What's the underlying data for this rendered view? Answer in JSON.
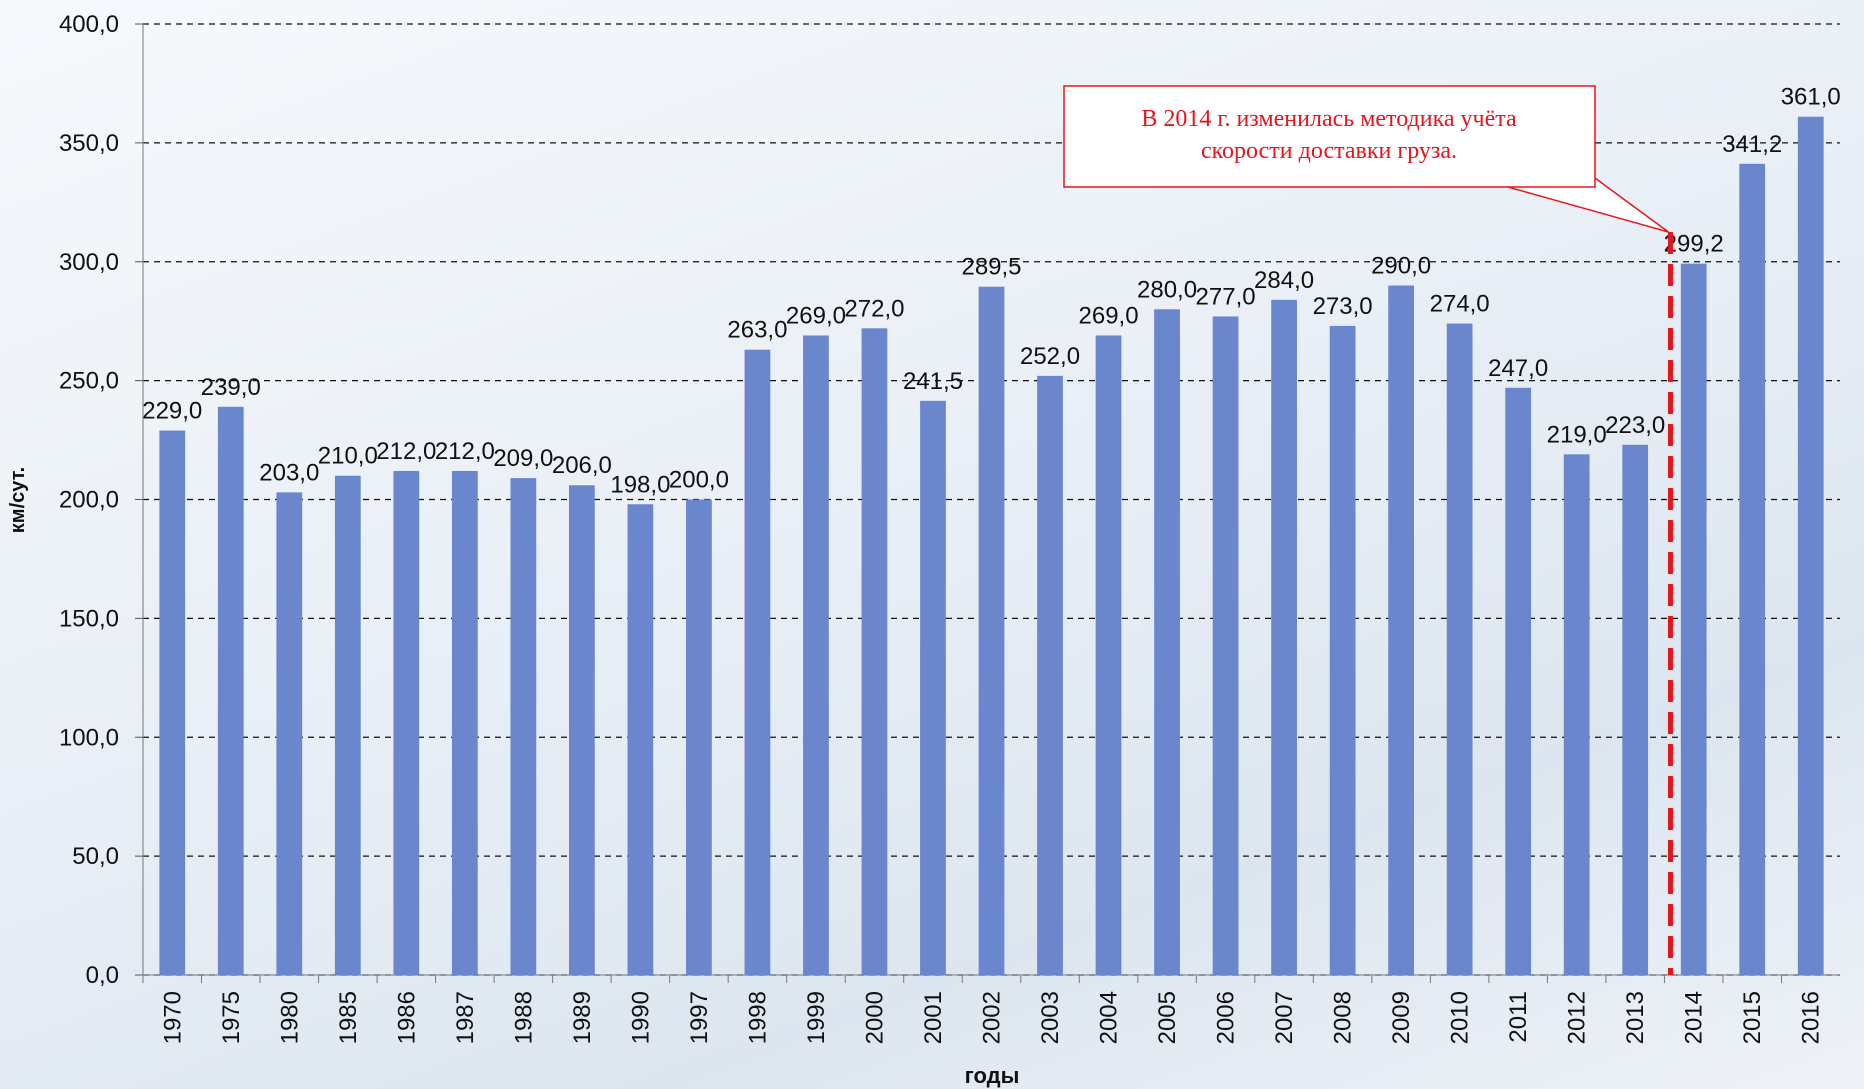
{
  "chart_data": {
    "type": "bar",
    "ylabel": "км/сут.",
    "xlabel": "годы",
    "annotation": [
      "В 2014 г. изменилась методика учёта",
      "скорости доставки груза."
    ],
    "categories": [
      "1970",
      "1975",
      "1980",
      "1985",
      "1986",
      "1987",
      "1988",
      "1989",
      "1990",
      "1997",
      "1998",
      "1999",
      "2000",
      "2001",
      "2002",
      "2003",
      "2004",
      "2005",
      "2006",
      "2007",
      "2008",
      "2009",
      "2010",
      "2011",
      "2012",
      "2013",
      "2014",
      "2015",
      "2016"
    ],
    "values": [
      229,
      239,
      203,
      210,
      212,
      212,
      209,
      206,
      198,
      200,
      263,
      269,
      272,
      241.5,
      289.5,
      252,
      269,
      280,
      277,
      284,
      273,
      290,
      274,
      247,
      219,
      223,
      299.2,
      341.2,
      361
    ],
    "value_labels": [
      "229,0",
      "239,0",
      "203,0",
      "210,0",
      "212,0",
      "212,0",
      "209,0",
      "206,0",
      "198,0",
      "200,0",
      "263,0",
      "269,0",
      "272,0",
      "241,5",
      "289,5",
      "252,0",
      "269,0",
      "280,0",
      "277,0",
      "284,0",
      "273,0",
      "290,0",
      "274,0",
      "247,0",
      "219,0",
      "223,0",
      "299,2",
      "341,2",
      "361,0"
    ],
    "color": "#6a86cc",
    "ylim": [
      0,
      400
    ],
    "yticks": [
      {
        "value": 0,
        "label": "0,0"
      },
      {
        "value": 50,
        "label": "50,0"
      },
      {
        "value": 100,
        "label": "100,0"
      },
      {
        "value": 150,
        "label": "150,0"
      },
      {
        "value": 200,
        "label": "200,0"
      },
      {
        "value": 250,
        "label": "250,0"
      },
      {
        "value": 300,
        "label": "300,0"
      },
      {
        "value": 350,
        "label": "350,0"
      },
      {
        "value": 400,
        "label": "400,0"
      }
    ],
    "grid": true
  }
}
